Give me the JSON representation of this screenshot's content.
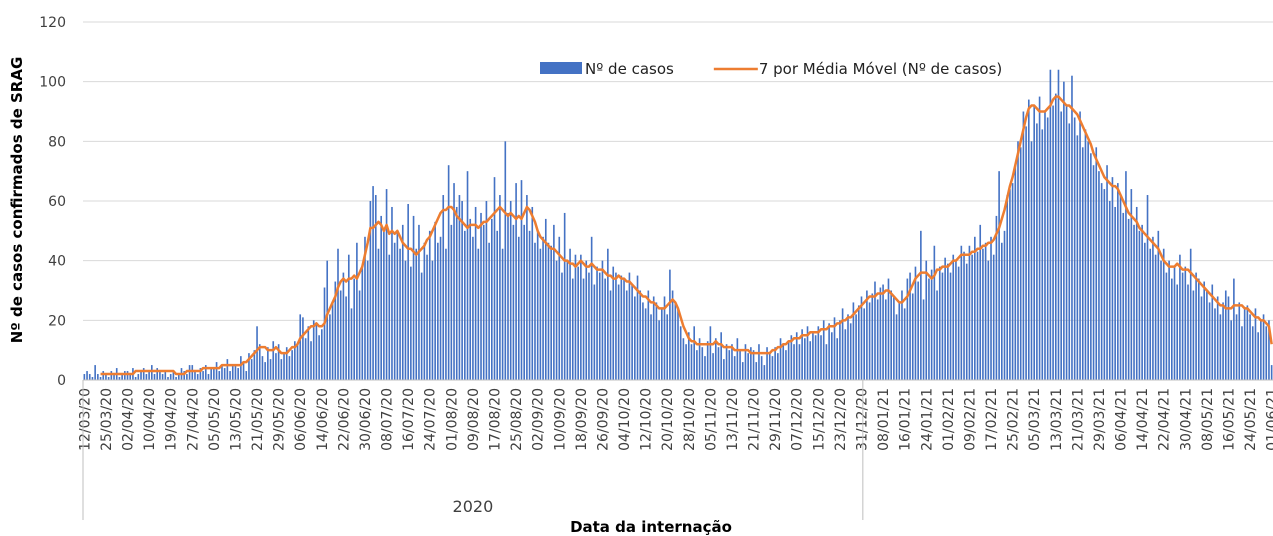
{
  "chart_data": {
    "type": "bar-line",
    "y_label": "Nº de casos confirmados de SRAG",
    "x_label": "Data da internação",
    "groups": [
      "2020"
    ],
    "ylim": [
      0,
      120
    ],
    "yticks": [
      0,
      20,
      40,
      60,
      80,
      100,
      120
    ],
    "grid": true,
    "legend": "top",
    "categories": [
      "12/03/20",
      null,
      null,
      null,
      null,
      null,
      null,
      null,
      "25/03/20",
      null,
      null,
      null,
      null,
      null,
      null,
      null,
      "02/04/20",
      null,
      null,
      null,
      null,
      null,
      null,
      null,
      "10/04/20",
      null,
      null,
      null,
      null,
      null,
      null,
      null,
      "19/04/20",
      null,
      null,
      null,
      null,
      null,
      null,
      null,
      "27/04/20",
      null,
      null,
      null,
      null,
      null,
      null,
      null,
      "05/05/20",
      null,
      null,
      null,
      null,
      null,
      null,
      null,
      "13/05/20",
      null,
      null,
      null,
      null,
      null,
      null,
      null,
      "21/05/20",
      null,
      null,
      null,
      null,
      null,
      null,
      null,
      "29/05/20",
      null,
      null,
      null,
      null,
      null,
      null,
      null,
      "06/06/20",
      null,
      null,
      null,
      null,
      null,
      null,
      null,
      "14/06/20",
      null,
      null,
      null,
      null,
      null,
      null,
      null,
      "22/06/20",
      null,
      null,
      null,
      null,
      null,
      null,
      null,
      "30/06/20",
      null,
      null,
      null,
      null,
      null,
      null,
      null,
      "08/07/20",
      null,
      null,
      null,
      null,
      null,
      null,
      null,
      "16/07/20",
      null,
      null,
      null,
      null,
      null,
      null,
      null,
      "24/07/20",
      null,
      null,
      null,
      null,
      null,
      null,
      null,
      "01/08/20",
      null,
      null,
      null,
      null,
      null,
      null,
      null,
      "09/08/20",
      null,
      null,
      null,
      null,
      null,
      null,
      null,
      "17/08/20",
      null,
      null,
      null,
      null,
      null,
      null,
      null,
      "25/08/20",
      null,
      null,
      null,
      null,
      null,
      null,
      null,
      "02/09/20",
      null,
      null,
      null,
      null,
      null,
      null,
      null,
      "10/09/20",
      null,
      null,
      null,
      null,
      null,
      null,
      null,
      "18/09/20",
      null,
      null,
      null,
      null,
      null,
      null,
      null,
      "26/09/20",
      null,
      null,
      null,
      null,
      null,
      null,
      null,
      "04/10/20",
      null,
      null,
      null,
      null,
      null,
      null,
      null,
      "12/10/20",
      null,
      null,
      null,
      null,
      null,
      null,
      null,
      "20/10/20",
      null,
      null,
      null,
      null,
      null,
      null,
      null,
      "28/10/20",
      null,
      null,
      null,
      null,
      null,
      null,
      null,
      "05/11/20",
      null,
      null,
      null,
      null,
      null,
      null,
      null,
      "13/11/20",
      null,
      null,
      null,
      null,
      null,
      null,
      null,
      "21/11/20",
      null,
      null,
      null,
      null,
      null,
      null,
      null,
      "29/11/20",
      null,
      null,
      null,
      null,
      null,
      null,
      null,
      "07/12/20",
      null,
      null,
      null,
      null,
      null,
      null,
      null,
      "15/12/20",
      null,
      null,
      null,
      null,
      null,
      null,
      null,
      "23/12/20",
      null,
      null,
      null,
      null,
      null,
      null,
      null,
      "31/12/20",
      null,
      null,
      null,
      null,
      null,
      null,
      null,
      "08/01/21",
      null,
      null,
      null,
      null,
      null,
      null,
      null,
      "16/01/21",
      null,
      null,
      null,
      null,
      null,
      null,
      null,
      "24/01/21",
      null,
      null,
      null,
      null,
      null,
      null,
      null,
      "01/02/21",
      null,
      null,
      null,
      null,
      null,
      null,
      null,
      "09/02/21",
      null,
      null,
      null,
      null,
      null,
      null,
      null,
      "17/02/21",
      null,
      null,
      null,
      null,
      null,
      null,
      null,
      "25/02/21",
      null,
      null,
      null,
      null,
      null,
      null,
      null,
      "05/03/21",
      null,
      null,
      null,
      null,
      null,
      null,
      null,
      "13/03/21",
      null,
      null,
      null,
      null,
      null,
      null,
      null,
      "21/03/21",
      null,
      null,
      null,
      null,
      null,
      null,
      null,
      "29/03/21",
      null,
      null,
      null,
      null,
      null,
      null,
      null,
      "06/04/21",
      null,
      null,
      null,
      null,
      null,
      null,
      null,
      "14/04/21",
      null,
      null,
      null,
      null,
      null,
      null,
      null,
      "22/04/21",
      null,
      null,
      null,
      null,
      null,
      null,
      null,
      "30/04/21",
      null,
      null,
      null,
      null,
      null,
      null,
      null,
      "08/05/21",
      null,
      null,
      null,
      null,
      null,
      null,
      null,
      "16/05/21",
      null,
      null,
      null,
      null,
      null,
      null,
      null,
      "24/05/21",
      null,
      null,
      null,
      null,
      null,
      null,
      null,
      "01/06/21"
    ],
    "series": [
      {
        "name": "Nº de casos",
        "kind": "bar",
        "color": "#4472c4",
        "values": [
          2,
          3,
          2,
          1,
          5,
          2,
          1,
          3,
          2,
          1,
          3,
          2,
          4,
          1,
          2,
          3,
          3,
          2,
          4,
          1,
          2,
          3,
          4,
          2,
          3,
          5,
          2,
          4,
          3,
          2,
          3,
          1,
          2,
          3,
          1,
          2,
          4,
          3,
          2,
          5,
          5,
          3,
          2,
          4,
          3,
          5,
          2,
          4,
          4,
          6,
          3,
          5,
          4,
          7,
          3,
          5,
          5,
          4,
          8,
          6,
          3,
          9,
          7,
          10,
          18,
          12,
          8,
          6,
          11,
          7,
          13,
          9,
          12,
          7,
          9,
          11,
          8,
          10,
          13,
          12,
          22,
          21,
          14,
          18,
          13,
          20,
          19,
          15,
          17,
          31,
          40,
          22,
          26,
          33,
          44,
          30,
          36,
          28,
          42,
          24,
          34,
          46,
          30,
          38,
          48,
          40,
          60,
          65,
          62,
          44,
          55,
          50,
          64,
          42,
          58,
          46,
          50,
          44,
          52,
          40,
          59,
          38,
          55,
          44,
          52,
          36,
          46,
          42,
          50,
          40,
          53,
          46,
          48,
          62,
          44,
          72,
          52,
          66,
          58,
          62,
          60,
          50,
          70,
          54,
          48,
          58,
          44,
          56,
          52,
          60,
          46,
          54,
          68,
          50,
          62,
          44,
          80,
          56,
          60,
          52,
          66,
          48,
          67,
          52,
          62,
          50,
          58,
          46,
          50,
          44,
          48,
          54,
          46,
          45,
          52,
          40,
          48,
          36,
          56,
          40,
          44,
          34,
          42,
          38,
          42,
          34,
          40,
          36,
          48,
          32,
          38,
          36,
          40,
          34,
          44,
          30,
          38,
          36,
          32,
          35,
          34,
          30,
          36,
          32,
          28,
          35,
          30,
          26,
          24,
          30,
          22,
          28,
          26,
          20,
          24,
          28,
          22,
          37,
          30,
          26,
          24,
          18,
          14,
          12,
          16,
          12,
          18,
          10,
          14,
          11,
          8,
          13,
          18,
          9,
          14,
          11,
          16,
          7,
          12,
          10,
          12,
          8,
          14,
          10,
          6,
          12,
          9,
          11,
          10,
          6,
          12,
          8,
          5,
          11,
          9,
          8,
          11,
          9,
          14,
          12,
          10,
          13,
          15,
          12,
          16,
          12,
          17,
          14,
          18,
          13,
          16,
          15,
          18,
          15,
          20,
          12,
          19,
          16,
          21,
          14,
          20,
          24,
          17,
          22,
          19,
          26,
          22,
          25,
          28,
          24,
          30,
          26,
          29,
          33,
          27,
          31,
          32,
          27,
          34,
          30,
          28,
          22,
          26,
          30,
          24,
          34,
          36,
          29,
          38,
          33,
          50,
          27,
          40,
          34,
          37,
          45,
          30,
          38,
          36,
          41,
          39,
          36,
          42,
          40,
          38,
          45,
          43,
          39,
          45,
          42,
          48,
          43,
          52,
          44,
          46,
          40,
          48,
          42,
          55,
          70,
          46,
          50,
          62,
          64,
          66,
          72,
          80,
          78,
          90,
          85,
          94,
          80,
          92,
          86,
          95,
          84,
          90,
          88,
          104,
          92,
          96,
          104,
          90,
          100,
          92,
          86,
          102,
          88,
          82,
          90,
          78,
          84,
          80,
          76,
          72,
          78,
          70,
          66,
          64,
          72,
          60,
          68,
          58,
          66,
          62,
          56,
          70,
          54,
          64,
          52,
          58,
          50,
          52,
          46,
          62,
          44,
          48,
          42,
          50,
          40,
          44,
          36,
          40,
          34,
          38,
          32,
          42,
          36,
          38,
          32,
          44,
          30,
          36,
          34,
          28,
          33,
          30,
          26,
          32,
          24,
          28,
          22,
          26,
          30,
          28,
          20,
          34,
          22,
          26,
          18,
          24,
          25,
          22,
          18,
          24,
          16,
          20,
          22,
          18,
          20,
          5
        ]
      },
      {
        "name": "7 por Média Móvel (Nº de casos)",
        "kind": "line",
        "color": "#ed7d31",
        "values": [
          null,
          null,
          null,
          null,
          null,
          null,
          2,
          2,
          2,
          2,
          2,
          2,
          2,
          2,
          2,
          2,
          2,
          2,
          2,
          3,
          3,
          3,
          3,
          3,
          3,
          3,
          3,
          3,
          3,
          3,
          3,
          3,
          3,
          3,
          2,
          2,
          2,
          2,
          3,
          3,
          3,
          3,
          3,
          3,
          4,
          4,
          4,
          4,
          4,
          4,
          4,
          5,
          5,
          5,
          5,
          5,
          5,
          5,
          5,
          6,
          6,
          7,
          8,
          9,
          10,
          11,
          11,
          11,
          10,
          10,
          10,
          11,
          10,
          9,
          9,
          9,
          10,
          11,
          11,
          12,
          14,
          15,
          16,
          17,
          18,
          18,
          19,
          18,
          18,
          19,
          22,
          24,
          26,
          28,
          31,
          33,
          34,
          33,
          34,
          34,
          35,
          34,
          36,
          38,
          42,
          46,
          51,
          51,
          52,
          53,
          52,
          50,
          52,
          49,
          50,
          49,
          50,
          48,
          46,
          45,
          44,
          44,
          43,
          42,
          43,
          44,
          45,
          47,
          48,
          50,
          52,
          54,
          56,
          57,
          57,
          58,
          58,
          57,
          55,
          54,
          53,
          52,
          51,
          52,
          52,
          52,
          51,
          52,
          53,
          53,
          54,
          55,
          56,
          57,
          58,
          57,
          56,
          55,
          56,
          55,
          54,
          55,
          54,
          56,
          58,
          57,
          55,
          53,
          50,
          48,
          47,
          46,
          45,
          44,
          44,
          43,
          42,
          41,
          40,
          40,
          39,
          39,
          38,
          39,
          40,
          39,
          38,
          38,
          39,
          38,
          37,
          37,
          37,
          36,
          35,
          35,
          34,
          34,
          35,
          34,
          34,
          33,
          33,
          32,
          31,
          30,
          29,
          28,
          28,
          27,
          26,
          26,
          25,
          24,
          24,
          24,
          25,
          26,
          27,
          26,
          24,
          21,
          18,
          16,
          14,
          13,
          13,
          12,
          12,
          12,
          12,
          12,
          12,
          12,
          13,
          12,
          12,
          11,
          11,
          11,
          11,
          10,
          10,
          10,
          10,
          10,
          10,
          9,
          9,
          9,
          9,
          9,
          9,
          9,
          9,
          10,
          10,
          11,
          11,
          12,
          12,
          13,
          13,
          14,
          14,
          14,
          15,
          15,
          15,
          16,
          16,
          16,
          16,
          17,
          17,
          17,
          18,
          18,
          18,
          19,
          19,
          20,
          20,
          21,
          21,
          22,
          23,
          24,
          25,
          26,
          27,
          28,
          28,
          28,
          29,
          29,
          29,
          30,
          30,
          29,
          28,
          27,
          26,
          26,
          27,
          28,
          30,
          32,
          34,
          35,
          36,
          36,
          36,
          35,
          34,
          35,
          37,
          37,
          38,
          38,
          38,
          39,
          40,
          40,
          41,
          42,
          42,
          42,
          42,
          43,
          43,
          44,
          44,
          45,
          45,
          46,
          46,
          47,
          49,
          51,
          54,
          57,
          61,
          65,
          68,
          72,
          76,
          80,
          84,
          88,
          91,
          92,
          92,
          91,
          90,
          90,
          90,
          91,
          92,
          94,
          95,
          95,
          94,
          93,
          92,
          92,
          91,
          90,
          89,
          87,
          85,
          83,
          81,
          79,
          76,
          74,
          72,
          70,
          68,
          67,
          66,
          65,
          65,
          64,
          62,
          60,
          58,
          56,
          55,
          54,
          53,
          51,
          50,
          49,
          48,
          47,
          46,
          45,
          44,
          42,
          40,
          39,
          38,
          38,
          38,
          39,
          38,
          37,
          37,
          37,
          36,
          35,
          34,
          33,
          32,
          31,
          30,
          29,
          28,
          27,
          26,
          25,
          25,
          24,
          24,
          24,
          25,
          25,
          25,
          25,
          24,
          24,
          23,
          22,
          21,
          21,
          20,
          20,
          19,
          18,
          12
        ]
      }
    ]
  }
}
